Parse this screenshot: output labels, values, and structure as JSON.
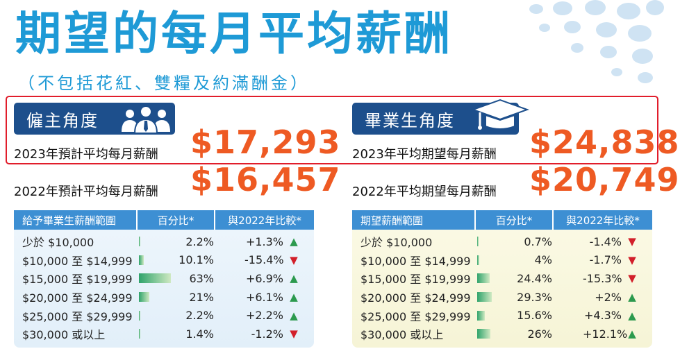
{
  "title": "期望的每月平均薪酬",
  "subtitle": "（不包括花紅、雙糧及約滿酬金）",
  "colors": {
    "title": "#1e9ad6",
    "badge": "#1d4f8c",
    "value": "#ee5a23",
    "table_header": "#3d8fd3",
    "highlight_border": "#e11d2b",
    "arrow_up": "#2c9a4e",
    "arrow_down": "#d21f2a"
  },
  "employer": {
    "badge_label": "僱主角度",
    "badge_icon": "people-group-icon",
    "stat_2023_label": "2023年預計平均每月薪酬",
    "stat_2023_value": "$17,293",
    "stat_2022_label": "2022年預計平均每月薪酬",
    "stat_2022_value": "$16,457",
    "table": {
      "headers": [
        "給予畢業生薪酬範圍",
        "百分比*",
        "與2022年比較*"
      ],
      "rows": [
        {
          "range": "少於 $10,000",
          "percent": "2.2%",
          "share": 2.2,
          "change": "+1.3%",
          "direction": "up"
        },
        {
          "range": "$10,000 至 $14,999",
          "percent": "10.1%",
          "share": 10.1,
          "change": "-15.4%",
          "direction": "down"
        },
        {
          "range": "$15,000 至 $19,999",
          "percent": "63%",
          "share": 63,
          "change": "+6.9%",
          "direction": "up"
        },
        {
          "range": "$20,000 至 $24,999",
          "percent": "21%",
          "share": 21,
          "change": "+6.1%",
          "direction": "up"
        },
        {
          "range": "$25,000 至 $29,999",
          "percent": "2.2%",
          "share": 2.2,
          "change": "+2.2%",
          "direction": "up"
        },
        {
          "range": "$30,000 或以上",
          "percent": "1.4%",
          "share": 1.4,
          "change": "-1.2%",
          "direction": "down"
        }
      ]
    }
  },
  "graduate": {
    "badge_label": "畢業生角度",
    "badge_icon": "graduation-cap-icon",
    "stat_2023_label": "2023年平均期望每月薪酬",
    "stat_2023_value": "$24,838",
    "stat_2022_label": "2022年平均期望每月薪酬",
    "stat_2022_value": "$20,749",
    "table": {
      "headers": [
        "期望薪酬範圍",
        "百分比*",
        "與2022年比較*"
      ],
      "rows": [
        {
          "range": "少於 $10,000",
          "percent": "0.7%",
          "share": 0.7,
          "change": "-1.4%",
          "direction": "down"
        },
        {
          "range": "$10,000 至 $14,999",
          "percent": "4%",
          "share": 4,
          "change": "-1.7%",
          "direction": "down"
        },
        {
          "range": "$15,000 至 $19,999",
          "percent": "24.4%",
          "share": 24.4,
          "change": "-15.3%",
          "direction": "down"
        },
        {
          "range": "$20,000 至 $24,999",
          "percent": "29.3%",
          "share": 29.3,
          "change": "+2%",
          "direction": "up"
        },
        {
          "range": "$25,000 至 $29,999",
          "percent": "15.6%",
          "share": 15.6,
          "change": "+4.3%",
          "direction": "up"
        },
        {
          "range": "$30,000 或以上",
          "percent": "26%",
          "share": 26,
          "change": "+12.1%",
          "direction": "up"
        }
      ]
    }
  }
}
